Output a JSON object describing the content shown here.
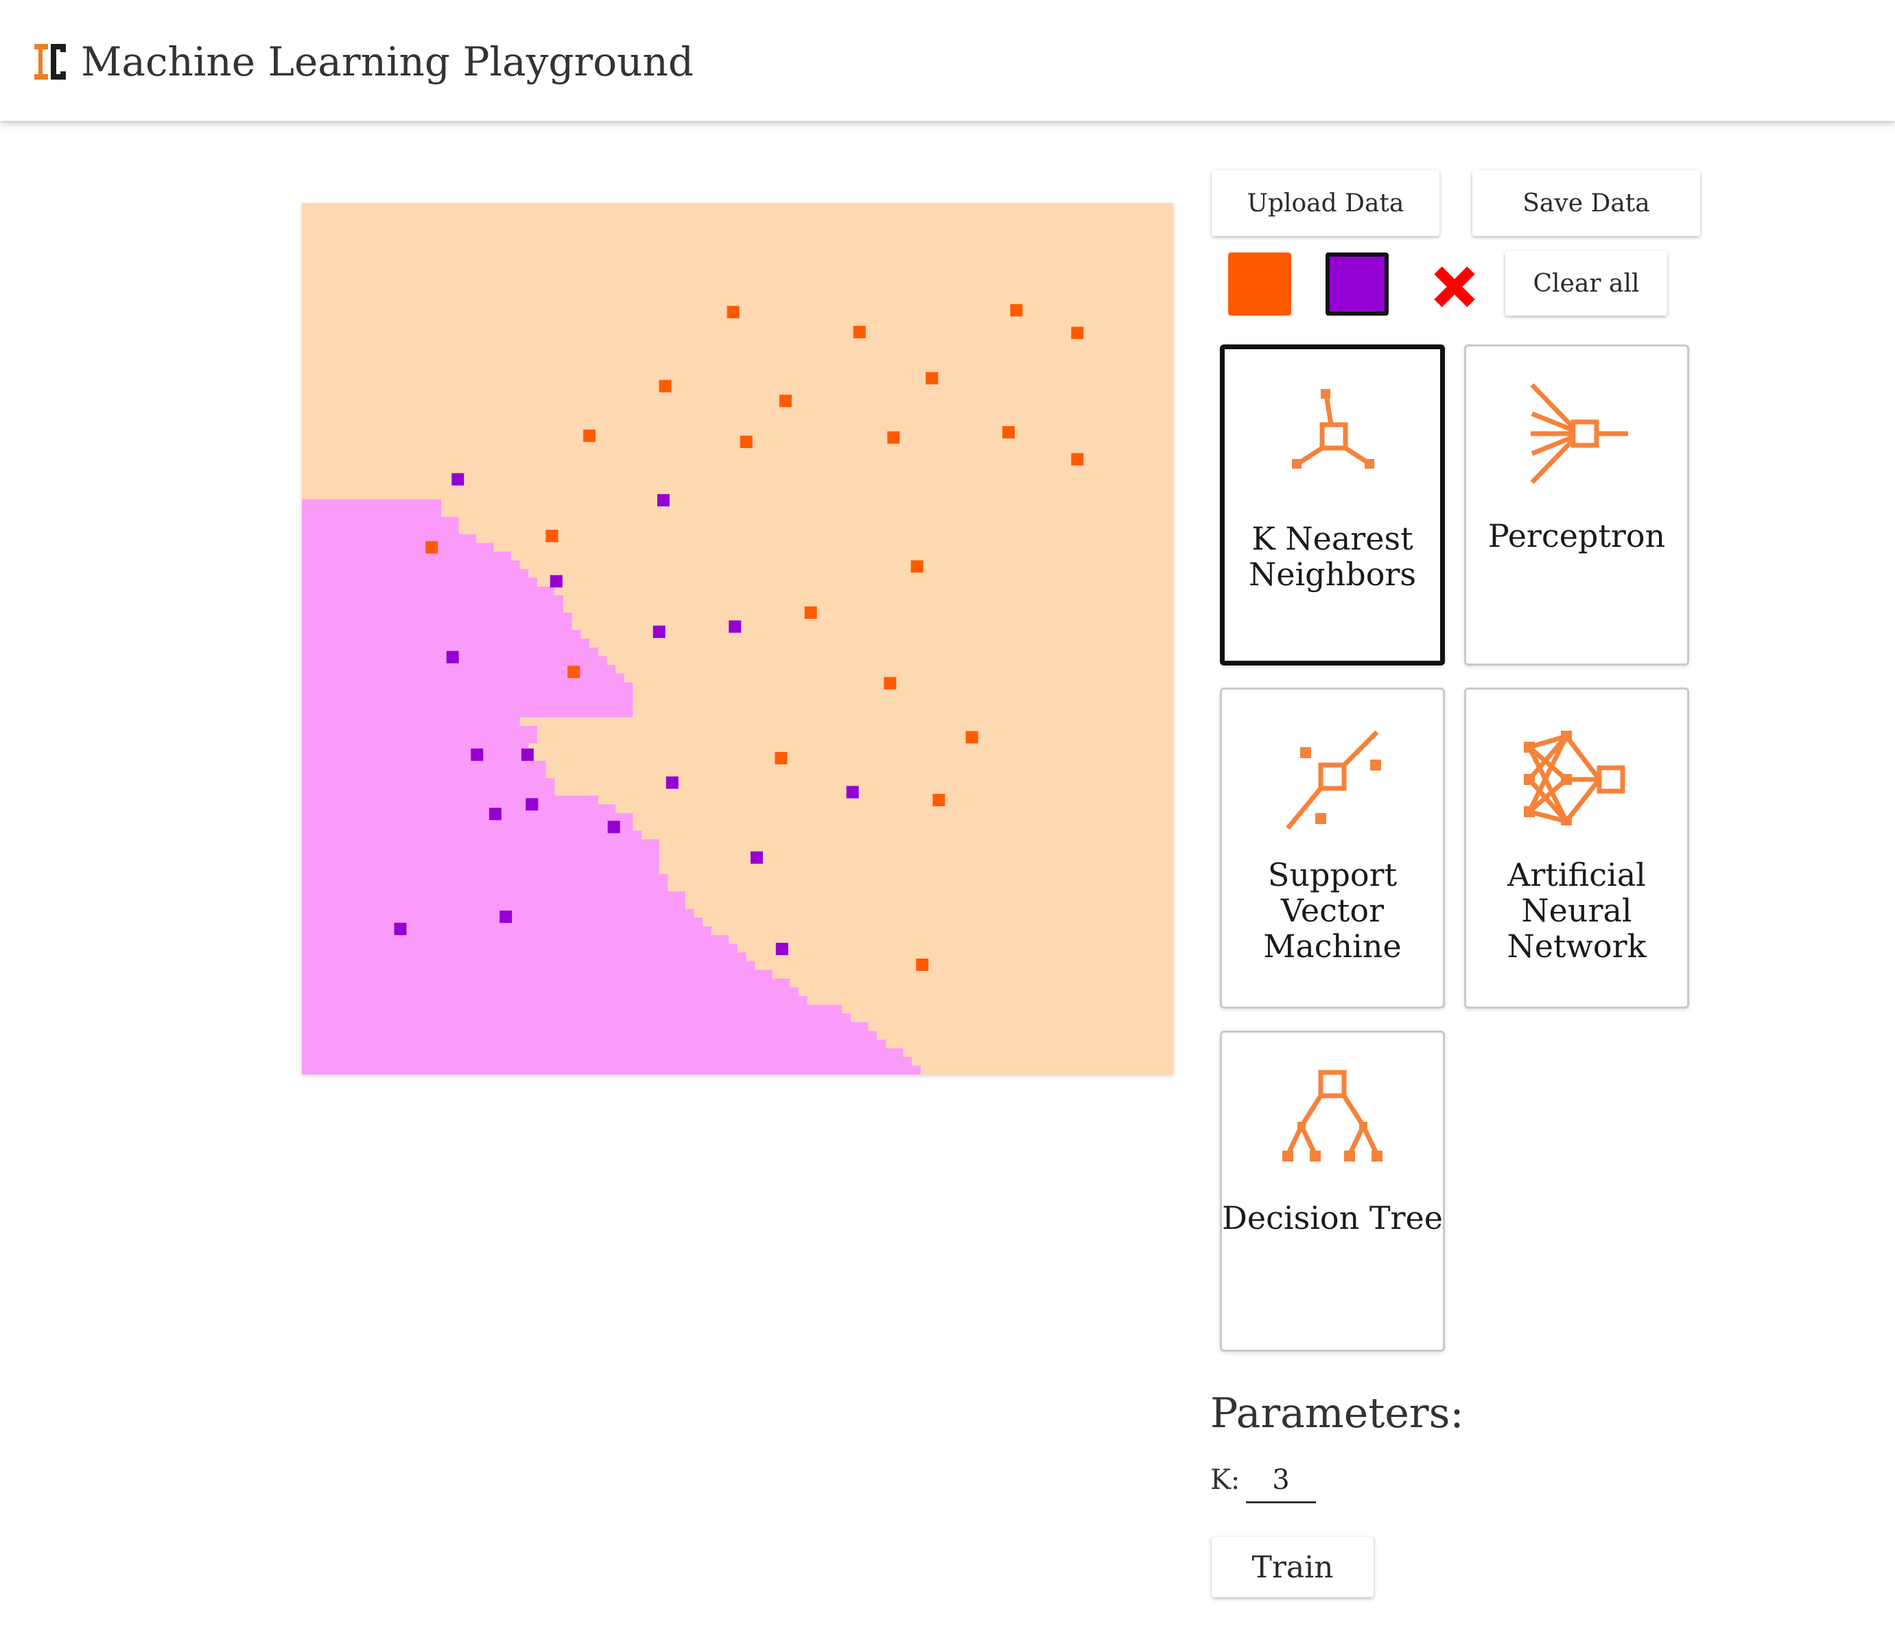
{
  "header": {
    "title": "Machine Learning Playground",
    "logo_icon": "ml-playground-logo-icon"
  },
  "toolbar": {
    "upload_label": "Upload Data",
    "save_label": "Save Data",
    "clear_label": "Clear all",
    "colors": {
      "orange": "#ff5a00",
      "purple": "#9400d3",
      "eraser": "#ff0000"
    },
    "selected_color": "purple"
  },
  "canvas": {
    "region_colors": {
      "orange": "#fed8b1",
      "purple": "#fa9bfa"
    },
    "point_colors": {
      "orange": "#ff5a00",
      "purple": "#9400d3"
    },
    "boundary_profile": [
      16,
      16,
      18,
      18,
      20,
      22,
      24,
      25,
      26,
      27,
      29,
      30,
      30,
      31,
      31,
      32,
      33,
      34,
      35,
      36,
      37,
      38,
      38,
      38,
      38,
      25,
      27,
      27,
      26,
      26,
      28,
      28,
      29,
      29,
      34,
      36,
      38,
      38,
      39,
      41,
      41,
      41,
      41,
      42,
      42,
      44,
      44,
      45,
      46,
      47,
      49,
      50,
      51,
      52,
      54,
      56,
      57,
      58,
      62,
      63,
      65,
      66,
      67,
      69,
      70,
      71
    ],
    "points": {
      "orange": [
        [
          49.5,
          12.5
        ],
        [
          82.0,
          12.3
        ],
        [
          64.0,
          14.8
        ],
        [
          89.0,
          14.9
        ],
        [
          41.7,
          21.0
        ],
        [
          55.5,
          22.7
        ],
        [
          72.3,
          20.1
        ],
        [
          33.0,
          26.7
        ],
        [
          51.0,
          27.4
        ],
        [
          67.9,
          26.9
        ],
        [
          81.1,
          26.3
        ],
        [
          89.0,
          29.4
        ],
        [
          28.7,
          38.2
        ],
        [
          14.9,
          39.5
        ],
        [
          70.6,
          41.7
        ],
        [
          58.4,
          47.0
        ],
        [
          31.2,
          53.8
        ],
        [
          67.5,
          55.1
        ],
        [
          76.9,
          61.3
        ],
        [
          55.0,
          63.7
        ],
        [
          73.1,
          68.5
        ],
        [
          71.2,
          87.4
        ]
      ],
      "purple": [
        [
          17.9,
          31.7
        ],
        [
          41.5,
          34.1
        ],
        [
          29.2,
          43.4
        ],
        [
          41.0,
          49.2
        ],
        [
          49.7,
          48.6
        ],
        [
          17.3,
          52.1
        ],
        [
          20.1,
          63.3
        ],
        [
          25.9,
          63.3
        ],
        [
          42.5,
          66.5
        ],
        [
          22.2,
          70.1
        ],
        [
          26.4,
          69.0
        ],
        [
          35.8,
          71.6
        ],
        [
          63.2,
          67.6
        ],
        [
          52.2,
          75.1
        ],
        [
          11.3,
          83.3
        ],
        [
          23.4,
          81.9
        ],
        [
          55.1,
          85.6
        ]
      ]
    }
  },
  "models": [
    {
      "id": "knn",
      "label": "K Nearest Neighbors",
      "icon": "knn-icon"
    },
    {
      "id": "perceptron",
      "label": "Perceptron",
      "icon": "perceptron-icon"
    },
    {
      "id": "svm",
      "label": "Support Vector Machine",
      "icon": "svm-icon"
    },
    {
      "id": "ann",
      "label": "Artificial Neural Network",
      "icon": "neural-network-icon"
    },
    {
      "id": "dt",
      "label": "Decision Tree",
      "icon": "decision-tree-icon"
    }
  ],
  "selected_model": "knn",
  "params": {
    "heading": "Parameters:",
    "k_label": "K:",
    "k_value": "3"
  },
  "train": {
    "label": "Train"
  }
}
